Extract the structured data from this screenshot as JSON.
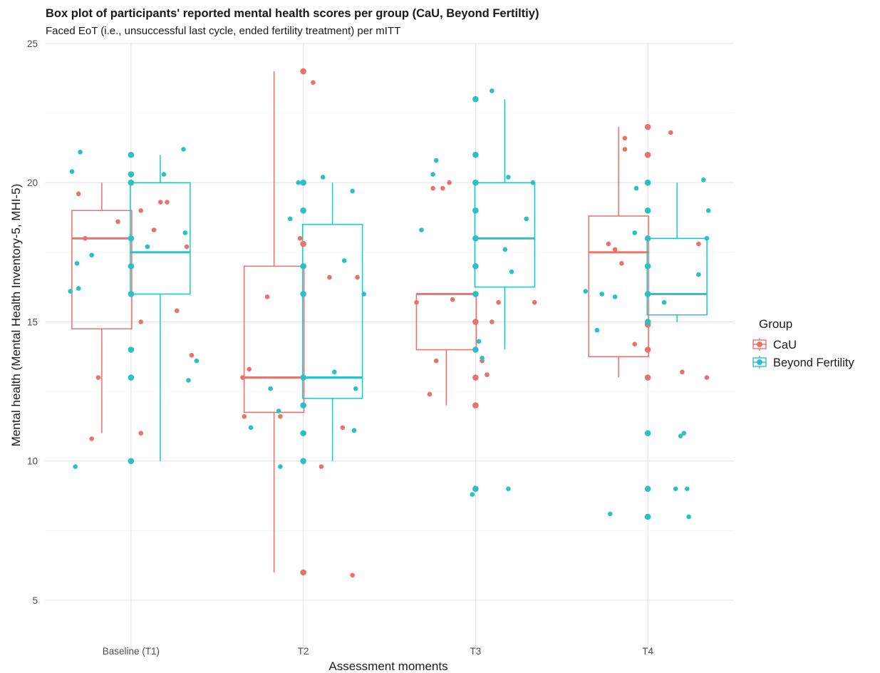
{
  "chart_data": {
    "type": "box",
    "title": "Box plot of participants' reported mental health scores per group (CaU, Beyond Fertiltiy)",
    "subtitle": "Faced EoT (i.e., unsuccessful last cycle, ended fertility treatment) per mITT",
    "xlabel": "Assessment moments",
    "ylabel": "Mental health (Mental Health Inventory-5, MHI-5)",
    "categories": [
      "Baseline (T1)",
      "T2",
      "T3",
      "T4"
    ],
    "ylim": [
      3,
      25
    ],
    "yticks": [
      5,
      10,
      15,
      20,
      25
    ],
    "grid": true,
    "legend": {
      "title": "Group",
      "position": "right"
    },
    "series": [
      {
        "name": "CaU",
        "color": "#E8736C",
        "boxes": [
          {
            "min": 11,
            "q1": 14.75,
            "median": 18,
            "q3": 19,
            "max": 20
          },
          {
            "min": 6,
            "q1": 11.75,
            "median": 13,
            "q3": 17,
            "max": 24
          },
          {
            "min": 12,
            "q1": 14,
            "median": 16,
            "q3": 16,
            "max": 16
          },
          {
            "min": 13,
            "q1": 13.75,
            "median": 17.5,
            "q3": 18.8,
            "max": 22
          }
        ],
        "points": [
          [
            [
              -0.32,
              19.6
            ],
            [
              -0.28,
              18.0
            ],
            [
              -0.24,
              10.8
            ],
            [
              -0.2,
              13.0
            ],
            [
              -0.08,
              18.6
            ],
            [
              0.06,
              19.0
            ],
            [
              0.06,
              15.0
            ],
            [
              0.06,
              11.0
            ],
            [
              0.14,
              18.3
            ],
            [
              0.18,
              19.3
            ],
            [
              0.22,
              19.3
            ],
            [
              0.28,
              15.4
            ],
            [
              0.34,
              17.7
            ],
            [
              0.37,
              13.8
            ]
          ],
          [
            [
              -0.37,
              13.0
            ],
            [
              -0.36,
              11.6
            ],
            [
              -0.33,
              13.3
            ],
            [
              -0.22,
              15.9
            ],
            [
              -0.14,
              11.6
            ],
            [
              -0.02,
              18.0
            ],
            [
              0.0,
              17.8
            ],
            [
              0.0,
              24.0
            ],
            [
              0.06,
              23.6
            ],
            [
              0.11,
              9.8
            ],
            [
              0.16,
              16.6
            ],
            [
              0.24,
              11.2
            ],
            [
              0.3,
              5.9
            ],
            [
              0.33,
              16.6
            ],
            [
              0.0,
              6.0
            ]
          ],
          [
            [
              -0.36,
              15.7
            ],
            [
              -0.28,
              12.4
            ],
            [
              -0.26,
              19.8
            ],
            [
              -0.24,
              13.6
            ],
            [
              -0.2,
              19.8
            ],
            [
              -0.16,
              20.0
            ],
            [
              -0.14,
              15.8
            ],
            [
              0.0,
              15.0
            ],
            [
              0.0,
              13.0
            ],
            [
              0.0,
              12.0
            ],
            [
              0.04,
              13.6
            ],
            [
              0.07,
              13.1
            ],
            [
              0.1,
              15.0
            ],
            [
              0.14,
              15.7
            ],
            [
              0.36,
              15.7
            ]
          ],
          [
            [
              -0.24,
              17.8
            ],
            [
              -0.2,
              17.6
            ],
            [
              -0.16,
              17.1
            ],
            [
              -0.14,
              21.2
            ],
            [
              -0.14,
              21.6
            ],
            [
              -0.08,
              14.2
            ],
            [
              0.0,
              22.0
            ],
            [
              0.0,
              21.0
            ],
            [
              0.0,
              14.0
            ],
            [
              0.0,
              13.0
            ],
            [
              0.0,
              14.9
            ],
            [
              0.14,
              21.8
            ],
            [
              0.21,
              13.2
            ],
            [
              0.31,
              17.8
            ],
            [
              0.36,
              13.0
            ]
          ]
        ]
      },
      {
        "name": "Beyond Fertility",
        "color": "#2BC1C4",
        "boxes": [
          {
            "min": 10,
            "q1": 16,
            "median": 17.5,
            "q3": 20,
            "max": 21
          },
          {
            "min": 10,
            "q1": 12.25,
            "median": 13,
            "q3": 18.5,
            "max": 20
          },
          {
            "min": 14,
            "q1": 16.25,
            "median": 18,
            "q3": 20,
            "max": 23
          },
          {
            "min": 15,
            "q1": 15.25,
            "median": 16,
            "q3": 18,
            "max": 20
          }
        ],
        "points": [
          [
            [
              -0.32,
              16.2
            ],
            [
              -0.36,
              20.4
            ],
            [
              -0.33,
              17.1
            ],
            [
              -0.34,
              9.8
            ],
            [
              -0.31,
              21.1
            ],
            [
              -0.24,
              17.4
            ],
            [
              -0.37,
              16.1
            ],
            [
              0.0,
              21.0
            ],
            [
              0.0,
              20.3
            ],
            [
              0.0,
              20.0
            ],
            [
              0.0,
              18.0
            ],
            [
              0.0,
              17.0
            ],
            [
              0.0,
              16.0
            ],
            [
              0.0,
              14.0
            ],
            [
              0.0,
              13.0
            ],
            [
              0.0,
              10.0
            ],
            [
              0.1,
              17.7
            ],
            [
              0.2,
              20.3
            ],
            [
              0.32,
              21.2
            ],
            [
              0.33,
              18.2
            ],
            [
              0.35,
              12.9
            ],
            [
              0.4,
              13.6
            ]
          ],
          [
            [
              -0.32,
              11.2
            ],
            [
              -0.2,
              12.6
            ],
            [
              -0.15,
              11.8
            ],
            [
              -0.14,
              9.8
            ],
            [
              -0.08,
              18.7
            ],
            [
              -0.03,
              20.0
            ],
            [
              0.0,
              20.0
            ],
            [
              0.0,
              19.0
            ],
            [
              0.0,
              17.0
            ],
            [
              0.0,
              16.0
            ],
            [
              0.0,
              13.0
            ],
            [
              0.0,
              12.0
            ],
            [
              0.0,
              11.0
            ],
            [
              0.0,
              10.0
            ],
            [
              0.12,
              20.2
            ],
            [
              0.19,
              13.2
            ],
            [
              0.25,
              17.2
            ],
            [
              0.3,
              19.7
            ],
            [
              0.31,
              11.1
            ],
            [
              0.32,
              12.6
            ],
            [
              0.37,
              16.0
            ]
          ],
          [
            [
              -0.33,
              18.3
            ],
            [
              -0.26,
              20.3
            ],
            [
              -0.24,
              20.8
            ],
            [
              0.0,
              23.0
            ],
            [
              0.0,
              21.0
            ],
            [
              0.0,
              20.0
            ],
            [
              0.0,
              19.0
            ],
            [
              0.0,
              18.0
            ],
            [
              0.0,
              17.0
            ],
            [
              0.0,
              16.0
            ],
            [
              0.0,
              14.0
            ],
            [
              0.0,
              9.0
            ],
            [
              -0.02,
              8.8
            ],
            [
              0.02,
              14.3
            ],
            [
              0.04,
              13.7
            ],
            [
              0.1,
              23.3
            ],
            [
              0.18,
              17.6
            ],
            [
              0.2,
              20.2
            ],
            [
              0.22,
              16.8
            ],
            [
              0.31,
              18.7
            ],
            [
              0.35,
              20.0
            ],
            [
              0.2,
              9.0
            ]
          ],
          [
            [
              -0.38,
              16.1
            ],
            [
              -0.31,
              14.7
            ],
            [
              -0.23,
              8.1
            ],
            [
              -0.28,
              16.0
            ],
            [
              -0.2,
              15.9
            ],
            [
              -0.08,
              18.2
            ],
            [
              -0.07,
              19.8
            ],
            [
              0.0,
              20.0
            ],
            [
              0.0,
              19.0
            ],
            [
              0.0,
              18.0
            ],
            [
              0.0,
              17.0
            ],
            [
              0.0,
              16.0
            ],
            [
              0.0,
              15.0
            ],
            [
              0.0,
              11.0
            ],
            [
              0.0,
              9.0
            ],
            [
              0.0,
              8.0
            ],
            [
              0.1,
              15.7
            ],
            [
              0.17,
              9.0
            ],
            [
              0.22,
              11.0
            ],
            [
              0.2,
              10.9
            ],
            [
              0.24,
              9.0
            ],
            [
              0.25,
              8.0
            ],
            [
              0.31,
              16.7
            ],
            [
              0.34,
              20.1
            ],
            [
              0.36,
              18.0
            ],
            [
              0.37,
              19.0
            ]
          ]
        ]
      }
    ]
  }
}
